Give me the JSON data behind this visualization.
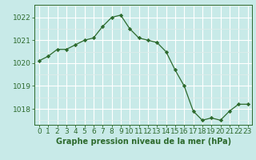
{
  "x": [
    0,
    1,
    2,
    3,
    4,
    5,
    6,
    7,
    8,
    9,
    10,
    11,
    12,
    13,
    14,
    15,
    16,
    17,
    18,
    19,
    20,
    21,
    22,
    23
  ],
  "y": [
    1020.1,
    1020.3,
    1020.6,
    1020.6,
    1020.8,
    1021.0,
    1021.1,
    1021.6,
    1022.0,
    1022.1,
    1021.5,
    1021.1,
    1021.0,
    1020.9,
    1020.5,
    1019.7,
    1019.0,
    1017.9,
    1017.5,
    1017.6,
    1017.5,
    1017.9,
    1018.2,
    1018.2
  ],
  "line_color": "#2d6a2d",
  "marker": "D",
  "marker_size": 2.2,
  "bg_color": "#c8eae8",
  "grid_color_major": "#ffffff",
  "grid_color_minor": "#ddecea",
  "xlabel": "Graphe pression niveau de la mer (hPa)",
  "xlabel_fontsize": 7,
  "ylabel_ticks": [
    1018,
    1019,
    1020,
    1021,
    1022
  ],
  "ylim": [
    1017.3,
    1022.55
  ],
  "xlim": [
    -0.5,
    23.5
  ],
  "tick_fontsize": 6.5,
  "tick_color": "#2d6a2d"
}
